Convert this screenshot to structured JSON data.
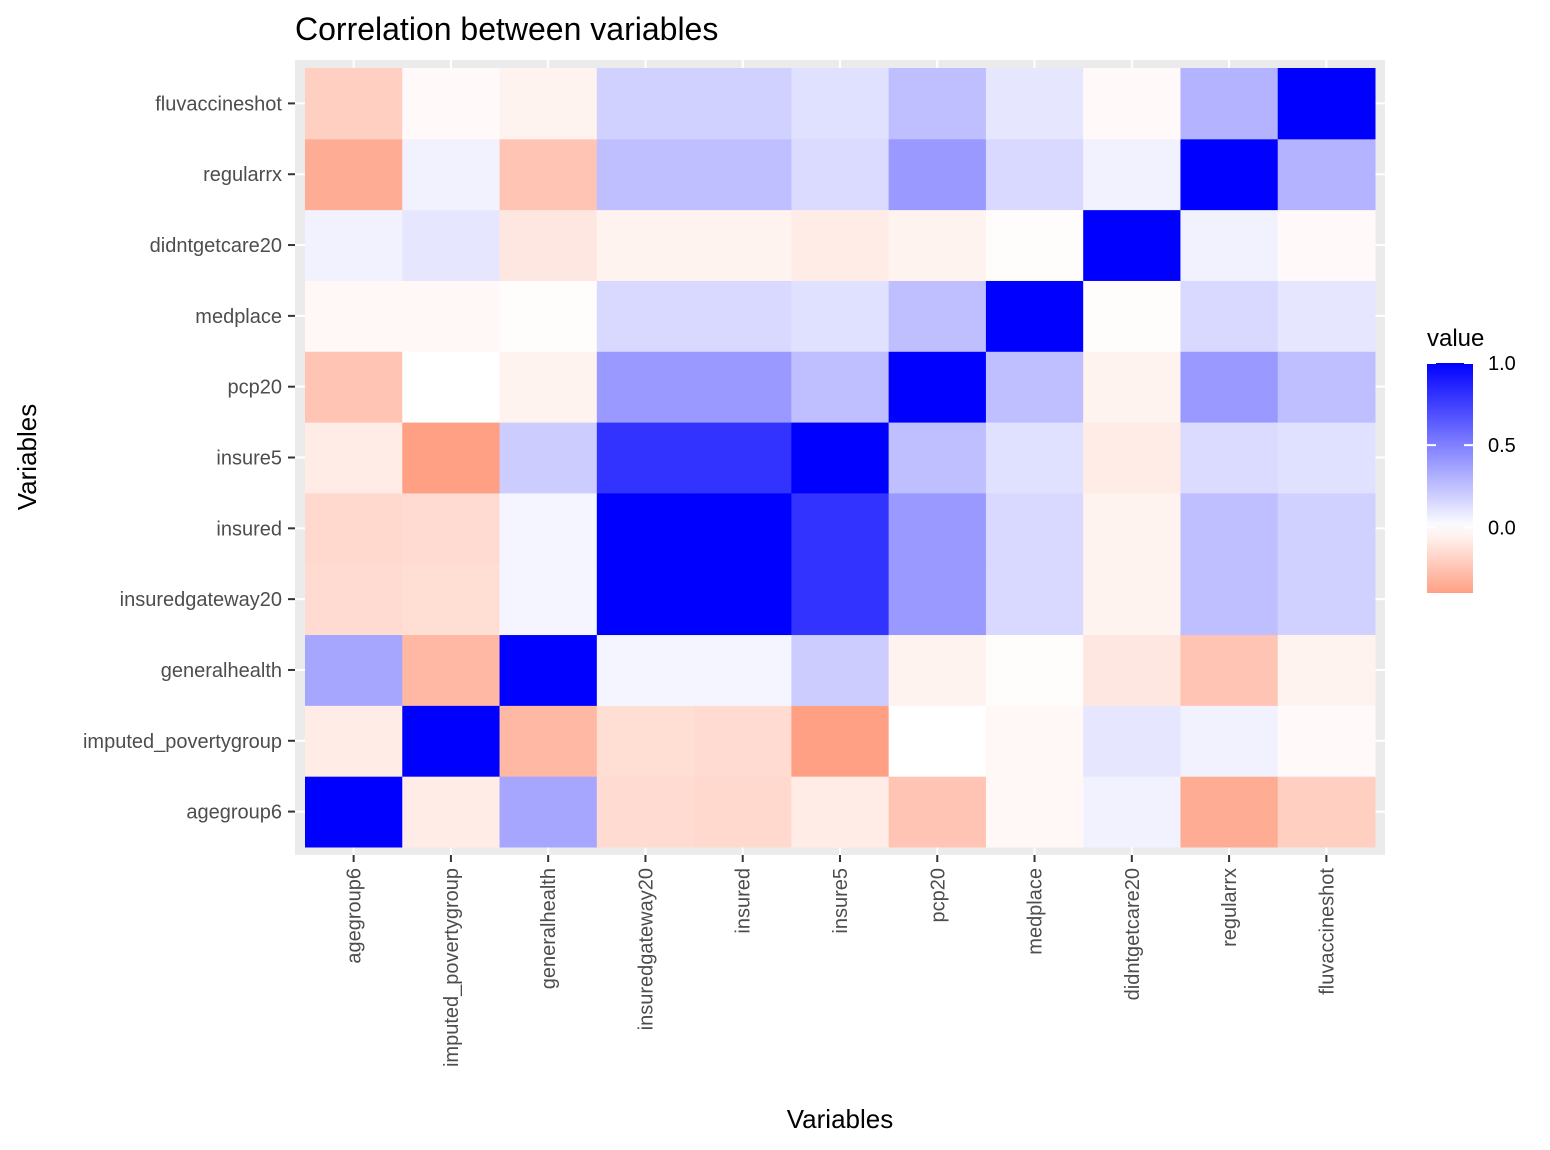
{
  "chart_data": {
    "type": "heatmap",
    "title": "Correlation between variables",
    "xlabel": "Variables",
    "ylabel": "Variables",
    "x_categories": [
      "agegroup6",
      "imputed_povertygroup",
      "generalhealth",
      "insuredgateway20",
      "insured",
      "insure5",
      "pcp20",
      "medplace",
      "didntgetcare20",
      "regularrx",
      "fluvaccineshot"
    ],
    "y_categories": [
      "agegroup6",
      "imputed_povertygroup",
      "generalhealth",
      "insuredgateway20",
      "insured",
      "insure5",
      "pcp20",
      "medplace",
      "didntgetcare20",
      "regularrx",
      "fluvaccineshot"
    ],
    "values": [
      [
        1.0,
        -0.08,
        0.35,
        -0.15,
        -0.16,
        -0.08,
        -0.25,
        -0.03,
        0.05,
        -0.35,
        -0.2
      ],
      [
        -0.08,
        1.0,
        -0.3,
        -0.14,
        -0.15,
        -0.4,
        0.0,
        -0.03,
        0.1,
        0.05,
        -0.02
      ],
      [
        0.35,
        -0.3,
        1.0,
        0.04,
        0.04,
        0.2,
        -0.05,
        -0.01,
        -0.1,
        -0.25,
        -0.05
      ],
      [
        -0.15,
        -0.14,
        0.04,
        1.0,
        1.0,
        0.8,
        0.4,
        0.15,
        -0.05,
        0.25,
        0.18
      ],
      [
        -0.16,
        -0.15,
        0.04,
        1.0,
        1.0,
        0.8,
        0.4,
        0.15,
        -0.05,
        0.25,
        0.18
      ],
      [
        -0.08,
        -0.4,
        0.2,
        0.8,
        0.8,
        1.0,
        0.25,
        0.12,
        -0.08,
        0.14,
        0.12
      ],
      [
        -0.25,
        0.0,
        -0.05,
        0.4,
        0.4,
        0.25,
        1.0,
        0.25,
        -0.05,
        0.4,
        0.25
      ],
      [
        -0.03,
        -0.03,
        -0.01,
        0.15,
        0.15,
        0.12,
        0.25,
        1.0,
        -0.01,
        0.15,
        0.1
      ],
      [
        0.05,
        0.1,
        -0.1,
        -0.05,
        -0.05,
        -0.08,
        -0.05,
        -0.01,
        1.0,
        0.05,
        -0.02
      ],
      [
        -0.35,
        0.05,
        -0.25,
        0.25,
        0.25,
        0.14,
        0.4,
        0.15,
        0.05,
        1.0,
        0.3
      ],
      [
        -0.2,
        -0.02,
        -0.05,
        0.18,
        0.18,
        0.12,
        0.25,
        0.1,
        -0.02,
        0.3,
        1.0
      ]
    ],
    "legend": {
      "title": "value",
      "ticks": [
        1.0,
        0.5,
        0.0
      ],
      "tick_labels": [
        "1.0",
        "0.5",
        "0.0"
      ],
      "range": [
        -0.4,
        1.0
      ],
      "placement": "right"
    },
    "colors": {
      "high": "#0000ff",
      "mid": "#ffffff",
      "low": "#ffa085",
      "panel_background": "#ebebeb",
      "grid": "#ffffff"
    },
    "grid": true
  }
}
